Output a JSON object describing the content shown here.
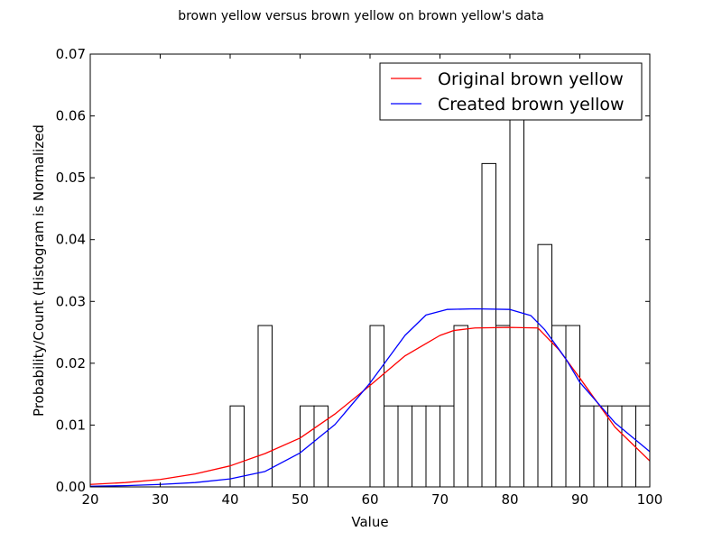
{
  "chart_data": {
    "type": "bar",
    "title": "brown yellow versus brown yellow on brown yellow's data",
    "xlabel": "Value",
    "ylabel": "Probability/Count (Histogram is Normalized",
    "xlim": [
      20,
      100
    ],
    "ylim": [
      0,
      0.07
    ],
    "xticks": [
      20,
      30,
      40,
      50,
      60,
      70,
      80,
      90,
      100
    ],
    "xtick_labels": [
      "20",
      "30",
      "40",
      "50",
      "60",
      "70",
      "80",
      "90",
      "100"
    ],
    "yticks": [
      0,
      0.01,
      0.02,
      0.03,
      0.04,
      0.05,
      0.06,
      0.07
    ],
    "ytick_labels": [
      "0.00",
      "0.01",
      "0.02",
      "0.03",
      "0.04",
      "0.05",
      "0.06",
      "0.07"
    ],
    "grid": false,
    "legend_position": "top-right",
    "histogram": {
      "bin_edges": [
        40,
        42,
        44,
        46,
        48,
        50,
        52,
        54,
        56,
        58,
        60,
        62,
        64,
        66,
        68,
        70,
        72,
        74,
        76,
        78,
        80,
        82,
        84,
        86,
        88,
        90,
        92,
        94,
        96,
        98,
        100
      ],
      "values": [
        0.0131,
        0,
        0.0261,
        0,
        0,
        0.0131,
        0.0131,
        0,
        0,
        0,
        0.0261,
        0.0131,
        0.0131,
        0.0131,
        0.0131,
        0.0131,
        0.0261,
        0,
        0.0523,
        0.0261,
        0.0654,
        0,
        0.0392,
        0.0261,
        0.0261,
        0.0131,
        0.0131,
        0.0131,
        0.0131,
        0.0131
      ],
      "edge_color": "#000000",
      "fill_color": "#ffffff"
    },
    "series": [
      {
        "name": "Original brown yellow",
        "color": "#ff0000",
        "x": [
          20,
          25,
          30,
          35,
          40,
          45,
          50,
          55,
          60,
          65,
          70,
          72,
          75,
          80,
          84,
          87,
          90,
          95,
          100
        ],
        "y": [
          0.0004,
          0.0007,
          0.0012,
          0.0021,
          0.0034,
          0.0054,
          0.0079,
          0.0118,
          0.0164,
          0.0212,
          0.0245,
          0.0253,
          0.0257,
          0.0258,
          0.0257,
          0.0222,
          0.0176,
          0.0097,
          0.0042
        ]
      },
      {
        "name": "Created brown yellow",
        "color": "#0000ff",
        "x": [
          20,
          25,
          30,
          35,
          40,
          45,
          50,
          55,
          60,
          65,
          68,
          71,
          75,
          80,
          83,
          85,
          88,
          90,
          95,
          100
        ],
        "y": [
          0.0001,
          0.0002,
          0.0004,
          0.0007,
          0.0013,
          0.0025,
          0.0055,
          0.0101,
          0.0168,
          0.0245,
          0.0278,
          0.0287,
          0.0288,
          0.0287,
          0.0277,
          0.0254,
          0.0207,
          0.0169,
          0.0104,
          0.0057
        ]
      }
    ]
  }
}
